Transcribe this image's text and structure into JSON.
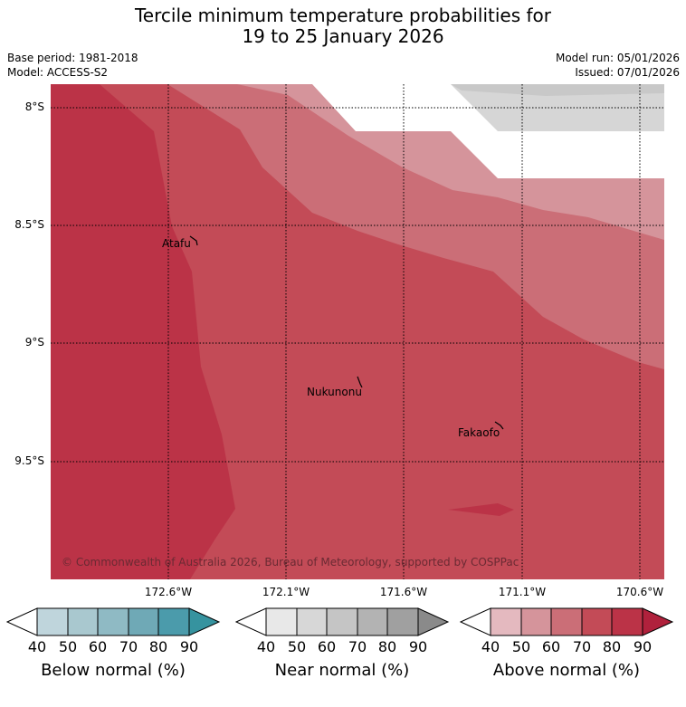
{
  "title_line1": "Tercile minimum temperature probabilities for",
  "title_line2": "19 to 25 January 2026",
  "base_period": "Base period: 1981-2018",
  "model": "Model: ACCESS-S2",
  "model_run": "Model run: 05/01/2026",
  "issued": "Issued: 07/01/2026",
  "copyright": "© Commonwealth of Australia 2026, Bureau of Meteorology, supported by COSPPac",
  "lat_labels": [
    "8°S",
    "8.5°S",
    "9°S",
    "9.5°S"
  ],
  "lon_labels": [
    "172.6°W",
    "172.1°W",
    "171.6°W",
    "171.1°W",
    "170.6°W"
  ],
  "places": [
    {
      "name": "Atafu"
    },
    {
      "name": "Nukunonu"
    },
    {
      "name": "Fakaofo"
    }
  ],
  "colorbars": [
    {
      "label": "Below normal (%)",
      "ticks": [
        "40",
        "50",
        "60",
        "70",
        "80",
        "90"
      ],
      "colors": [
        "#bfd5dc",
        "#a9c8cf",
        "#8fbac4",
        "#6fa9b6",
        "#4b9bab",
        "#36939f"
      ],
      "extend": "#2f8b98"
    },
    {
      "label": "Near normal (%)",
      "ticks": [
        "40",
        "50",
        "60",
        "70",
        "80",
        "90"
      ],
      "colors": [
        "#e8e8e8",
        "#d7d7d7",
        "#c5c5c5",
        "#b3b3b3",
        "#a0a0a0"
      ],
      "extend": "#8a8a8a"
    },
    {
      "label": "Above normal (%)",
      "ticks": [
        "40",
        "50",
        "60",
        "70",
        "80",
        "90"
      ],
      "colors": [
        "#e4b9bf",
        "#d5949b",
        "#cb6e77",
        "#c34b57",
        "#bb3347"
      ],
      "extend": "#b0213c"
    }
  ],
  "map_colors": {
    "dark": "#bb3347",
    "mid": "#c34b57",
    "light": "#cb6e77",
    "lighter": "#d5949b",
    "near1": "#c8c8c8",
    "near2": "#d6d6d6"
  }
}
